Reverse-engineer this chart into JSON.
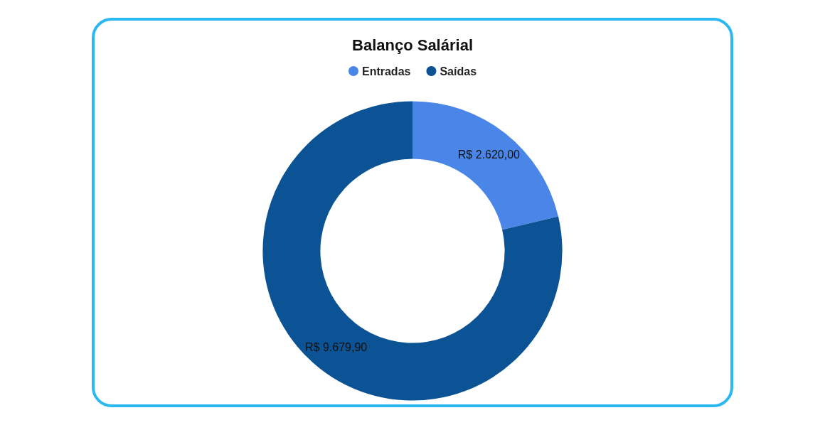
{
  "chart_data": {
    "type": "donut",
    "title": "Balanço Salárial",
    "categories": [
      "Entradas",
      "Saídas"
    ],
    "values": [
      2620.0,
      9679.9
    ],
    "colors": [
      "#4a86e8",
      "#0b5394"
    ],
    "value_labels": [
      "R$ 2.620,00",
      "R$ 9.679,90"
    ],
    "legend": "top"
  }
}
